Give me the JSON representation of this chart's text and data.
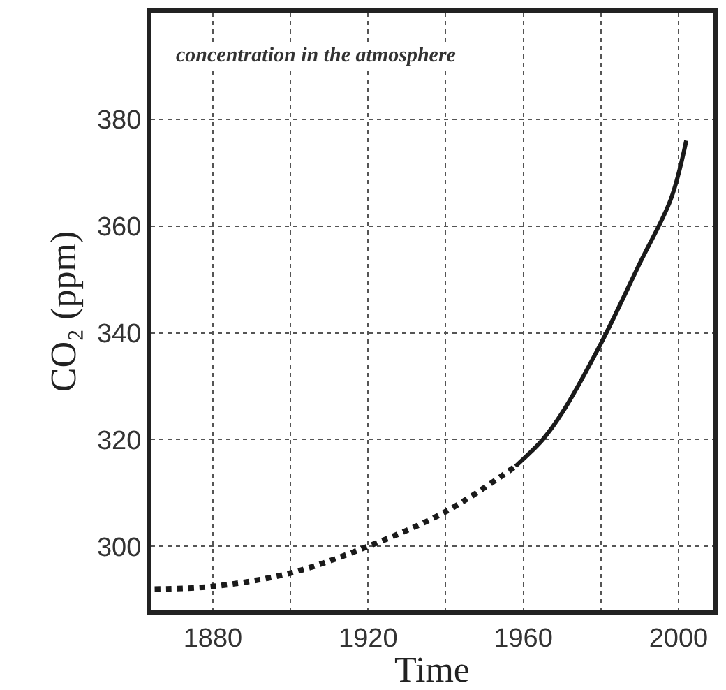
{
  "chart_data": {
    "type": "line",
    "xlabel": "Time",
    "ylabel": "CO₂ (ppm)",
    "annotations": [
      "concentration in the atmosphere"
    ],
    "series": [
      {
        "color": "#1a1a1a",
        "line_style": "dotted",
        "x": [
          1865,
          1880,
          1900,
          1920,
          1940,
          1958
        ],
        "values": [
          292,
          292.5,
          295,
          300,
          306.5,
          315
        ]
      },
      {
        "color": "#1a1a1a",
        "line_style": "solid",
        "x": [
          1958,
          1965,
          1970,
          1980,
          1990,
          1998,
          2002
        ],
        "values": [
          315,
          320,
          325,
          338,
          353,
          365,
          376
        ]
      }
    ],
    "xlim": [
      1864,
      2009
    ],
    "ylim": [
      288,
      400
    ],
    "xticks": [
      1880,
      {
        "value": 1900,
        "label": null
      },
      1920,
      {
        "value": 1940,
        "label": null
      },
      1960,
      {
        "value": 1980,
        "label": null
      },
      2000
    ],
    "yticks": [
      300,
      320,
      340,
      360,
      380
    ],
    "grid": true,
    "legend": false,
    "marker": "none"
  }
}
